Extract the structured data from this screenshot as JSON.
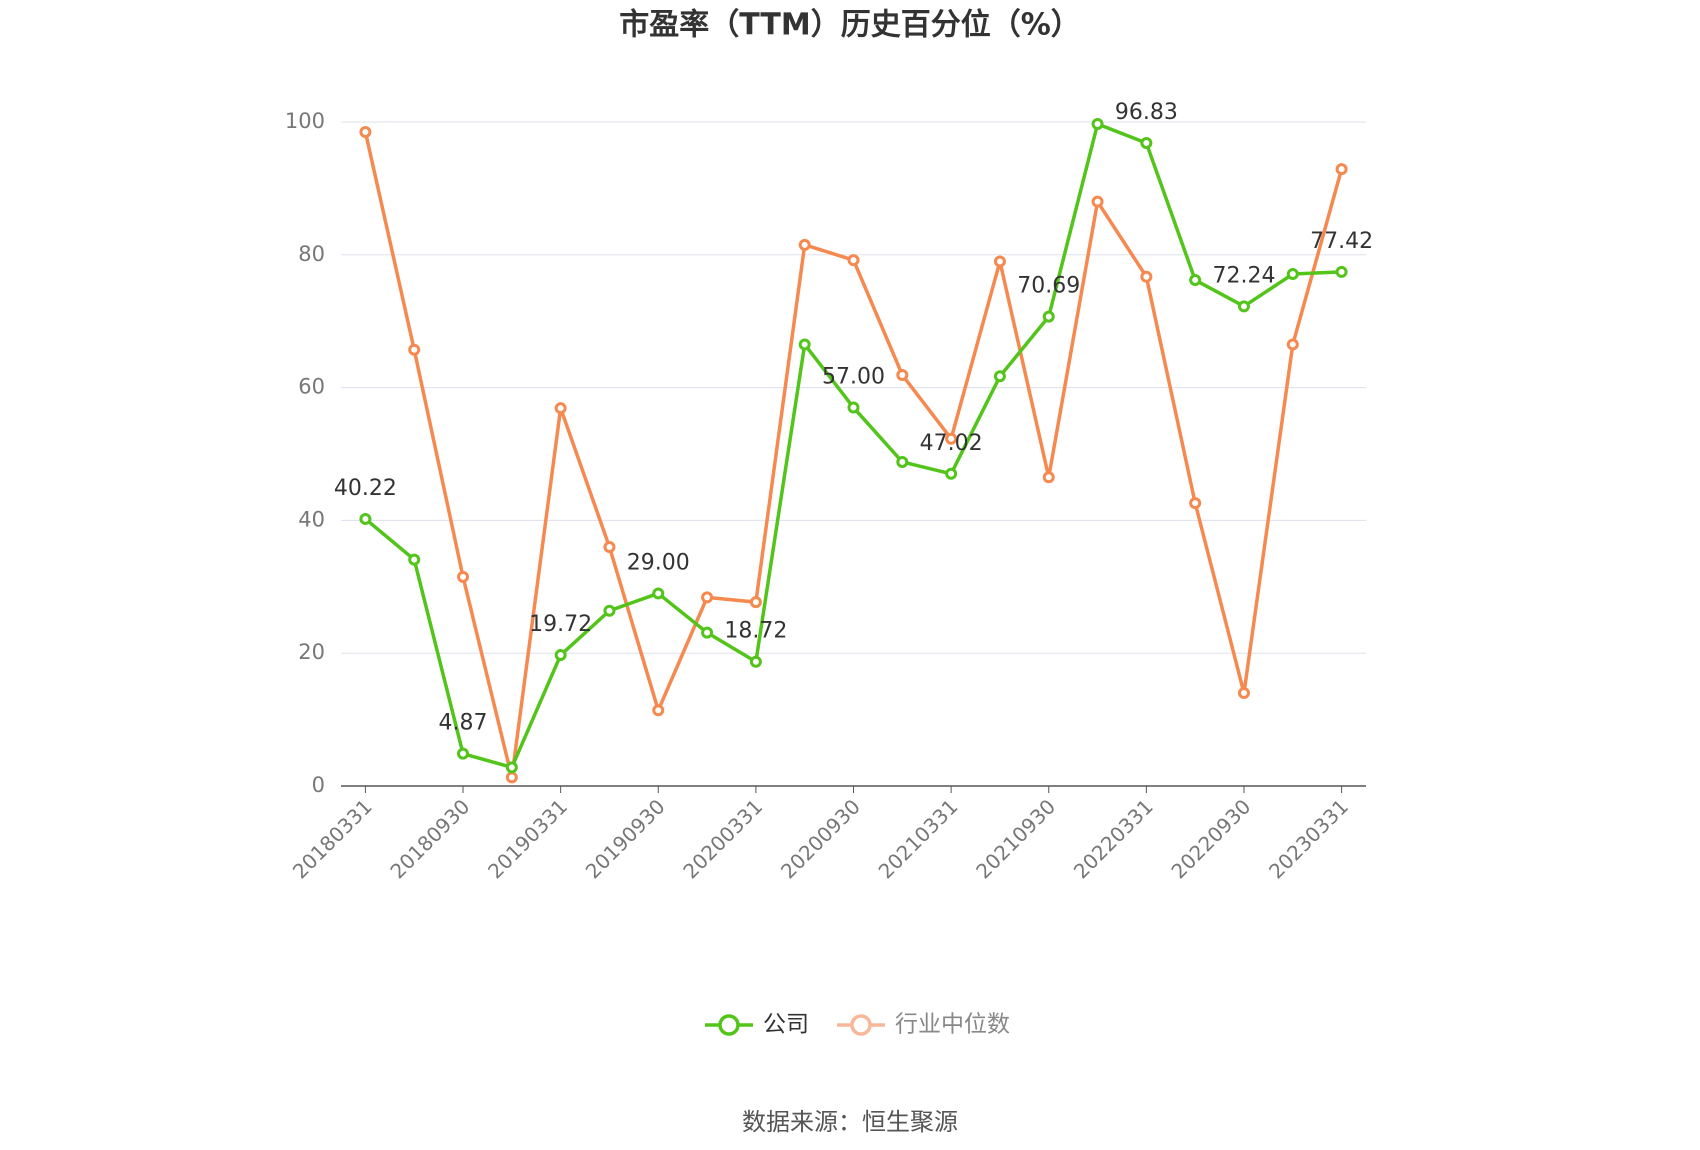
{
  "chart_data": {
    "type": "line",
    "title": "市盈率（TTM）历史百分位（%）",
    "categories": [
      "20180331",
      null,
      "20180930",
      null,
      "20190331",
      null,
      "20190930",
      null,
      "20200331",
      null,
      "20200930",
      null,
      "20210331",
      null,
      "20210930",
      null,
      "20220331",
      null,
      "20220930",
      null,
      "20230331"
    ],
    "series": [
      {
        "name": "公司",
        "color": "#52c41a",
        "values": [
          40.22,
          34.1,
          4.87,
          2.8,
          19.72,
          26.4,
          29.0,
          23.1,
          18.72,
          66.5,
          57.0,
          48.8,
          47.02,
          61.7,
          70.69,
          99.7,
          96.83,
          76.2,
          72.24,
          77.1,
          77.42
        ],
        "value_labels": [
          "40.22",
          null,
          "4.87",
          null,
          "19.72",
          null,
          "29.00",
          null,
          "18.72",
          null,
          "57.00",
          null,
          "47.02",
          null,
          "70.69",
          null,
          "96.83",
          null,
          "72.24",
          null,
          "77.42"
        ]
      },
      {
        "name": "行业中位数",
        "color": "#f5894f",
        "values": [
          98.5,
          65.7,
          31.5,
          1.3,
          56.9,
          36.0,
          11.4,
          28.4,
          27.7,
          81.5,
          79.2,
          61.9,
          52.3,
          79.0,
          46.5,
          88.0,
          76.7,
          42.6,
          14.0,
          66.5,
          92.9
        ]
      }
    ],
    "ylim": [
      0,
      100
    ],
    "yticks": [
      0,
      20,
      40,
      60,
      80,
      100
    ],
    "grid": true,
    "source": "数据来源：恒生聚源"
  }
}
